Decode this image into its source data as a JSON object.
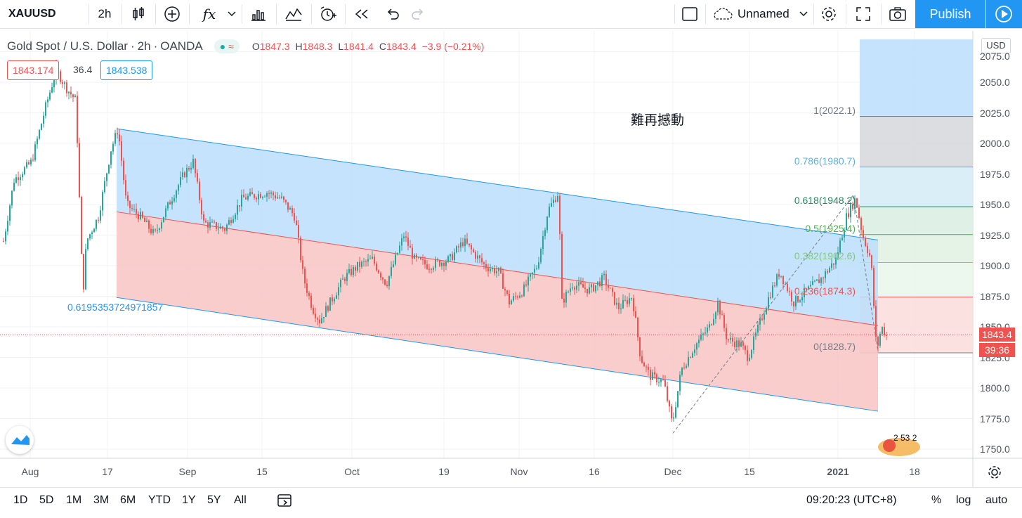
{
  "toolbar": {
    "symbol": "XAUUSD",
    "interval": "2h",
    "fx_label": "fx",
    "layout_name": "Unnamed",
    "publish_label": "Publish"
  },
  "legend": {
    "title": "Gold Spot / U.S. Dollar",
    "sep1": "/",
    "interval": "2h",
    "source": "OANDA",
    "open_label": "O",
    "open": "1847.3",
    "high_label": "H",
    "high": "1848.3",
    "low_label": "L",
    "low": "1841.4",
    "close_label": "C",
    "close": "1843.4",
    "change": "−3.9 (−0.21%)",
    "pill_icon": "≈"
  },
  "crosshair": {
    "price_left": "1843.174",
    "diff": "36.4",
    "price_right": "1843.538"
  },
  "price_axis": {
    "currency": "USD",
    "ticks": [
      "2075.0",
      "2050.0",
      "2025.0",
      "2000.0",
      "1975.0",
      "1950.0",
      "1925.0",
      "1900.0",
      "1875.0",
      "1850.0",
      "1825.0",
      "1800.0",
      "1775.0",
      "1750.0"
    ],
    "last_price": "1843.4",
    "countdown": "39:36"
  },
  "time_axis": {
    "ticks": [
      "Aug",
      "17",
      "Sep",
      "15",
      "Oct",
      "19",
      "Nov",
      "16",
      "Dec",
      "15",
      "2021",
      "18"
    ]
  },
  "annotations": {
    "text_note": "難再撼動",
    "channel_ratio": "0.6195353724971857"
  },
  "fib_levels": [
    {
      "label": "1(2022.1)",
      "color": "#787b86"
    },
    {
      "label": "0.786(1980.7)",
      "color": "#5fb0d8"
    },
    {
      "label": "0.618(1948.2)",
      "color": "#26875b"
    },
    {
      "label": "0.5(1925.4)",
      "color": "#4caf50"
    },
    {
      "label": "0.382(1902.6)",
      "color": "#81c784"
    },
    {
      "label": "0.236(1874.3)",
      "color": "#ef5350"
    },
    {
      "label": "0(1828.7)",
      "color": "#787b86"
    }
  ],
  "watermark": "2 53 2",
  "bottom": {
    "ranges": [
      "1D",
      "5D",
      "1M",
      "3M",
      "6M",
      "YTD",
      "1Y",
      "5Y",
      "All"
    ],
    "time": "09:20:23 (UTC+8)",
    "percent": "%",
    "log": "log",
    "auto": "auto"
  },
  "colors": {
    "accent": "#2196f3",
    "up": "#26a69a",
    "down": "#ef5350",
    "channel_upper_fill": "#bbdefb",
    "channel_lower_fill": "#f8c8c6"
  }
}
